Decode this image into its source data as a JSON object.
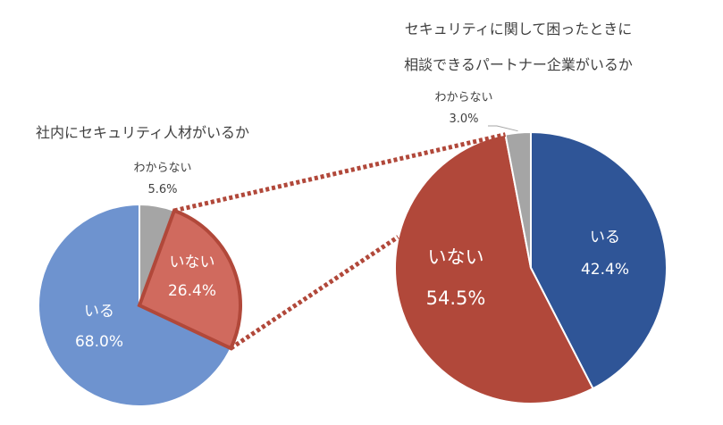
{
  "chart_data": [
    {
      "type": "pie",
      "title": "社内にセキュリティ人材がいるか",
      "slices": [
        {
          "label": "わからない",
          "value": 5.6,
          "display": "5.6%",
          "color": "#a5a5a5"
        },
        {
          "label": "いない",
          "value": 26.4,
          "display": "26.4%",
          "color": "#d06a5e"
        },
        {
          "label": "いる",
          "value": 68.0,
          "display": "68.0%",
          "color": "#6e93cf"
        }
      ]
    },
    {
      "type": "pie",
      "title": "セキュリティに関して困ったときに\n相談できるパートナー企業がいるか",
      "title_lines": [
        "セキュリティに関して困ったときに",
        "相談できるパートナー企業がいるか"
      ],
      "slices": [
        {
          "label": "いる",
          "value": 42.4,
          "display": "42.4%",
          "color": "#2f5597"
        },
        {
          "label": "いない",
          "value": 54.5,
          "display": "54.5%",
          "color": "#b1483a"
        },
        {
          "label": "わからない",
          "value": 3.0,
          "display": "3.0%",
          "color": "#a5a5a5"
        }
      ]
    }
  ],
  "colors": {
    "highlight_border": "#b1483a",
    "connector": "#b1483a"
  }
}
